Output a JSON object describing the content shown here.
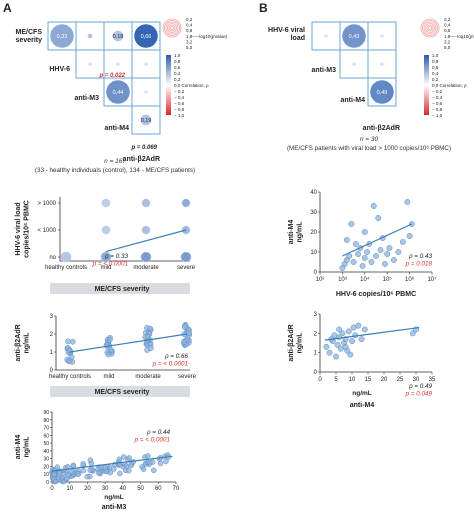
{
  "figure": {
    "panel_labels": [
      "A",
      "B"
    ],
    "colors": {
      "positive": "#3a6fbd",
      "negative": "#e04040",
      "point": "#8fb3dc",
      "point_stroke": "#5a8cc6",
      "trend": "#3f7fb8",
      "grid_border": "#6aa7d6",
      "band": "#d9dde2",
      "red_text": "#e0302a"
    },
    "corr_legend": {
      "size_title": "−log10(pValue)",
      "size_ticks": [
        "0,2",
        "0,4",
        "0,8",
        "1,8",
        "3,2",
        "5,0"
      ],
      "color_title": "Correlation, ρ",
      "color_ticks": [
        "1,0",
        "0,8",
        "0,6",
        "0,4",
        "0,2",
        "0,0",
        "− 0,2",
        "− 0,4",
        "− 0,6",
        "− 0,8",
        "− 1,0"
      ]
    },
    "panel_a": {
      "matrix_labels": [
        "ME/CFS\nseverity",
        "HHV-6",
        "anti-M3",
        "anti-M4",
        "anti-β2AdR"
      ],
      "cells": [
        {
          "row": 0,
          "col": 0,
          "rho": 0.33,
          "label": "0,33",
          "size": 1.0
        },
        {
          "row": 0,
          "col": 1,
          "rho": 0.18,
          "label": "",
          "size": 0.2
        },
        {
          "row": 0,
          "col": 2,
          "rho": 0.18,
          "label": "0,18",
          "size": 0.45
        },
        {
          "row": 0,
          "col": 3,
          "rho": 0.66,
          "label": "0,66",
          "size": 1.0
        },
        {
          "row": 1,
          "col": 1,
          "rho": 0.05,
          "label": "",
          "size": 0.15
        },
        {
          "row": 1,
          "col": 2,
          "rho": 0.05,
          "label": "",
          "size": 0.15
        },
        {
          "row": 1,
          "col": 3,
          "rho": 0.05,
          "label": "",
          "size": 0.15
        },
        {
          "row": 2,
          "col": 2,
          "rho": 0.44,
          "label": "0,44",
          "size": 1.0
        },
        {
          "row": 2,
          "col": 3,
          "rho": 0.05,
          "label": "",
          "size": 0.15
        },
        {
          "row": 3,
          "col": 3,
          "rho": 0.19,
          "label": "0,19",
          "size": 0.45
        }
      ],
      "pvals": [
        {
          "text": "p = 0.022",
          "color": "red"
        },
        {
          "text": "p = 0.069",
          "color": "black"
        }
      ],
      "n_line": "n = 167",
      "n_detail": "(33 - healthy individuals (control), 134 - ME/CFS patients)"
    },
    "panel_b": {
      "matrix_labels": [
        "HHV-6 viral\nload",
        "anti-M3",
        "anti-M4",
        "anti-β2AdR"
      ],
      "cells": [
        {
          "row": 0,
          "col": 0,
          "rho": 0.05,
          "label": "",
          "size": 0.15
        },
        {
          "row": 0,
          "col": 1,
          "rho": 0.43,
          "label": "0,43",
          "size": 1.0
        },
        {
          "row": 0,
          "col": 2,
          "rho": 0.05,
          "label": "",
          "size": 0.15
        },
        {
          "row": 1,
          "col": 1,
          "rho": 0.05,
          "label": "",
          "size": 0.15
        },
        {
          "row": 1,
          "col": 2,
          "rho": 0.05,
          "label": "",
          "size": 0.15
        },
        {
          "row": 2,
          "col": 2,
          "rho": 0.49,
          "label": "0,49",
          "size": 1.0
        }
      ],
      "n_line": "n = 30",
      "n_detail": "(ME/CFS patients with viral load > 1000 copies/10⁶ PBMC)"
    }
  },
  "chart_data": [
    {
      "type": "scatter",
      "ylabel": "HHV-6 viral load\ncopies/10⁶ PBMC",
      "xlabel": "ME/CFS severity",
      "categories": [
        "healthy controls",
        "mild",
        "moderate",
        "severe"
      ],
      "y_categories": [
        "no",
        "< 1000",
        "> 1000"
      ],
      "points": [
        {
          "x": 0,
          "y": 0,
          "size": 1.0,
          "shade": 0.25
        },
        {
          "x": 1,
          "y": 0,
          "size": 1.0,
          "shade": 0.45
        },
        {
          "x": 2,
          "y": 0,
          "size": 1.0,
          "shade": 0.55
        },
        {
          "x": 3,
          "y": 0,
          "size": 1.0,
          "shade": 0.55
        },
        {
          "x": 1,
          "y": 1,
          "size": 0.8,
          "shade": 0.2
        },
        {
          "x": 2,
          "y": 1,
          "size": 0.8,
          "shade": 0.3
        },
        {
          "x": 3,
          "y": 1,
          "size": 0.8,
          "shade": 0.35
        },
        {
          "x": 1,
          "y": 2,
          "size": 0.8,
          "shade": 0.2
        },
        {
          "x": 2,
          "y": 2,
          "size": 0.8,
          "shade": 0.3
        },
        {
          "x": 3,
          "y": 2,
          "size": 0.8,
          "shade": 0.45
        }
      ],
      "trend": [
        [
          1.0,
          0.2
        ],
        [
          3.0,
          1.0
        ]
      ],
      "stats": [
        {
          "text": "ρ = 0.33",
          "color": "black"
        },
        {
          "text": "p = < 0.0001",
          "color": "red"
        }
      ]
    },
    {
      "type": "scatter",
      "ylabel": "anti-β2AdR\nng/mL",
      "xlabel": "ME/CFS severity",
      "categories": [
        "healthy controls",
        "mild",
        "moderate",
        "severe"
      ],
      "yticks": [
        0,
        1,
        2,
        3
      ],
      "ylim": [
        0,
        3
      ],
      "trend": [
        [
          0,
          1.0
        ],
        [
          3,
          2.0
        ]
      ],
      "stats": [
        {
          "text": "ρ = 0.66",
          "color": "black"
        },
        {
          "text": "p = < 0.0001",
          "color": "red"
        }
      ]
    },
    {
      "type": "scatter",
      "ylabel": "anti-M4\nng/mL",
      "xlabel": "anti-M3",
      "x_unit": "ng/mL",
      "xticks": [
        0,
        10,
        20,
        30,
        40,
        50,
        60,
        70
      ],
      "xlim": [
        0,
        70
      ],
      "yticks": [
        0,
        10,
        20,
        30,
        40,
        50,
        60,
        70,
        80,
        90
      ],
      "ylim": [
        0,
        90
      ],
      "trend": [
        [
          0,
          14
        ],
        [
          68,
          33
        ]
      ],
      "stats": [
        {
          "text": "ρ = 0.44",
          "color": "black"
        },
        {
          "text": "p = < 0.0001",
          "color": "red"
        }
      ]
    },
    {
      "type": "scatter",
      "ylabel": "anti-M4\nng/mL",
      "xlabel": "HHV-6 copies/10⁶ PBMC",
      "x_scale": "log",
      "xticks": [
        "10²",
        "10³",
        "10⁴",
        "10⁵",
        "10⁶",
        "10⁷"
      ],
      "xlim_log10": [
        2,
        7
      ],
      "yticks": [
        0,
        10,
        20,
        30,
        40
      ],
      "ylim": [
        0,
        40
      ],
      "points": [
        [
          3.0,
          2
        ],
        [
          3.1,
          4
        ],
        [
          3.2,
          6
        ],
        [
          3.3,
          8
        ],
        [
          3.5,
          5
        ],
        [
          3.7,
          9
        ],
        [
          3.8,
          12
        ],
        [
          3.9,
          3
        ],
        [
          4.0,
          7
        ],
        [
          4.1,
          10
        ],
        [
          4.2,
          14
        ],
        [
          4.3,
          5
        ],
        [
          4.5,
          8
        ],
        [
          4.6,
          27
        ],
        [
          4.7,
          11
        ],
        [
          4.8,
          17
        ],
        [
          3.4,
          24
        ],
        [
          3.6,
          14
        ],
        [
          4.0,
          20
        ],
        [
          5.0,
          9
        ],
        [
          5.1,
          12
        ],
        [
          5.3,
          6
        ],
        [
          5.5,
          10
        ],
        [
          5.9,
          35
        ],
        [
          6.0,
          18
        ],
        [
          6.1,
          24
        ],
        [
          4.4,
          33
        ],
        [
          3.2,
          16
        ],
        [
          4.9,
          4
        ],
        [
          5.7,
          15
        ]
      ],
      "trend": [
        [
          3.0,
          8
        ],
        [
          6.1,
          24
        ]
      ],
      "stats": [
        {
          "text": "ρ = 0.43",
          "color": "black"
        },
        {
          "text": "p = 0.018",
          "color": "red"
        }
      ]
    },
    {
      "type": "scatter",
      "ylabel": "anti-β2AdR\nng/mL",
      "xlabel": "anti-M4",
      "x_unit": "ng/mL",
      "xticks": [
        0,
        5,
        10,
        15,
        20,
        25,
        30,
        35
      ],
      "xlim": [
        0,
        35
      ],
      "yticks": [
        0,
        1,
        2,
        3
      ],
      "ylim": [
        0,
        3
      ],
      "points": [
        [
          2,
          1.3
        ],
        [
          3,
          1.0
        ],
        [
          4,
          1.6
        ],
        [
          4.5,
          1.9
        ],
        [
          5,
          0.8
        ],
        [
          5.5,
          1.4
        ],
        [
          6,
          1.8
        ],
        [
          6.5,
          1.2
        ],
        [
          7,
          2.0
        ],
        [
          7.5,
          1.5
        ],
        [
          8,
          1.7
        ],
        [
          8.5,
          1.1
        ],
        [
          9,
          2.1
        ],
        [
          10,
          1.6
        ],
        [
          10.5,
          2.3
        ],
        [
          11,
          1.9
        ],
        [
          12,
          2.4
        ],
        [
          13,
          1.7
        ],
        [
          14,
          2.2
        ],
        [
          9.5,
          0.9
        ],
        [
          29,
          2.0
        ],
        [
          30,
          2.2
        ],
        [
          6,
          2.2
        ],
        [
          3.5,
          1.7
        ],
        [
          8,
          1.3
        ]
      ],
      "trend": [
        [
          1.5,
          1.65
        ],
        [
          31,
          2.3
        ]
      ],
      "stats": [
        {
          "text": "ρ = 0.49",
          "color": "black"
        },
        {
          "text": "p = 0.049",
          "color": "red"
        }
      ]
    }
  ]
}
